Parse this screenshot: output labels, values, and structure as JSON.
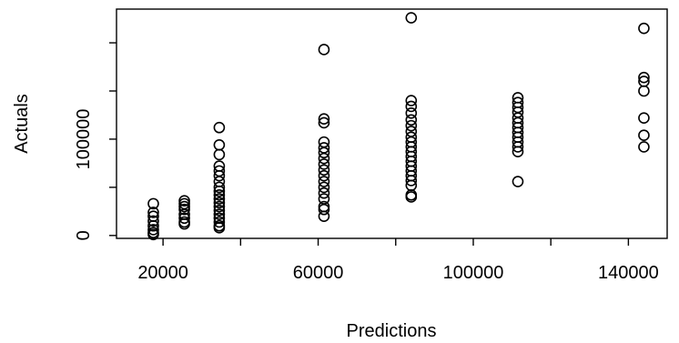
{
  "chart_data": {
    "type": "scatter",
    "xlabel": "Predictions",
    "ylabel": "Actuals",
    "xlim": [
      8000,
      150000
    ],
    "ylim": [
      -3000,
      235000
    ],
    "x_ticks": [
      20000,
      40000,
      60000,
      80000,
      100000,
      120000,
      140000
    ],
    "x_tick_labels": [
      "20000",
      "",
      "60000",
      "",
      "100000",
      "",
      "140000"
    ],
    "y_ticks": [
      0,
      50000,
      100000,
      150000,
      200000
    ],
    "y_tick_labels": [
      "0",
      "",
      "100000",
      "",
      ""
    ],
    "grid": false,
    "points": [
      {
        "x": 17500,
        "y": 33000
      },
      {
        "x": 17500,
        "y": 24000
      },
      {
        "x": 17500,
        "y": 20000
      },
      {
        "x": 17500,
        "y": 15000
      },
      {
        "x": 17500,
        "y": 10000
      },
      {
        "x": 17500,
        "y": 6000
      },
      {
        "x": 17500,
        "y": 3000
      },
      {
        "x": 17500,
        "y": 1000
      },
      {
        "x": 25500,
        "y": 36000
      },
      {
        "x": 25500,
        "y": 33000
      },
      {
        "x": 25500,
        "y": 30000
      },
      {
        "x": 25500,
        "y": 27000
      },
      {
        "x": 25500,
        "y": 22000
      },
      {
        "x": 25500,
        "y": 18000
      },
      {
        "x": 25500,
        "y": 14000
      },
      {
        "x": 25500,
        "y": 12000
      },
      {
        "x": 34500,
        "y": 112000
      },
      {
        "x": 34500,
        "y": 94000
      },
      {
        "x": 34500,
        "y": 84000
      },
      {
        "x": 34500,
        "y": 72000
      },
      {
        "x": 34500,
        "y": 67000
      },
      {
        "x": 34500,
        "y": 62000
      },
      {
        "x": 34500,
        "y": 56000
      },
      {
        "x": 34500,
        "y": 50000
      },
      {
        "x": 34500,
        "y": 46000
      },
      {
        "x": 34500,
        "y": 42000
      },
      {
        "x": 34500,
        "y": 38000
      },
      {
        "x": 34500,
        "y": 34000
      },
      {
        "x": 34500,
        "y": 30000
      },
      {
        "x": 34500,
        "y": 26000
      },
      {
        "x": 34500,
        "y": 22000
      },
      {
        "x": 34500,
        "y": 18000
      },
      {
        "x": 34500,
        "y": 14000
      },
      {
        "x": 34500,
        "y": 10000
      },
      {
        "x": 34500,
        "y": 8000
      },
      {
        "x": 61500,
        "y": 193000
      },
      {
        "x": 61500,
        "y": 121000
      },
      {
        "x": 61500,
        "y": 117000
      },
      {
        "x": 61500,
        "y": 97000
      },
      {
        "x": 61500,
        "y": 91000
      },
      {
        "x": 61500,
        "y": 86000
      },
      {
        "x": 61500,
        "y": 80000
      },
      {
        "x": 61500,
        "y": 74000
      },
      {
        "x": 61500,
        "y": 68000
      },
      {
        "x": 61500,
        "y": 62000
      },
      {
        "x": 61500,
        "y": 56000
      },
      {
        "x": 61500,
        "y": 50000
      },
      {
        "x": 61500,
        "y": 44000
      },
      {
        "x": 61500,
        "y": 38000
      },
      {
        "x": 61500,
        "y": 30000
      },
      {
        "x": 61500,
        "y": 27000
      },
      {
        "x": 61500,
        "y": 20000
      },
      {
        "x": 84000,
        "y": 226000
      },
      {
        "x": 84000,
        "y": 140000
      },
      {
        "x": 84000,
        "y": 134000
      },
      {
        "x": 84000,
        "y": 127000
      },
      {
        "x": 84000,
        "y": 120000
      },
      {
        "x": 84000,
        "y": 114000
      },
      {
        "x": 84000,
        "y": 108000
      },
      {
        "x": 84000,
        "y": 102000
      },
      {
        "x": 84000,
        "y": 97000
      },
      {
        "x": 84000,
        "y": 92000
      },
      {
        "x": 84000,
        "y": 87000
      },
      {
        "x": 84000,
        "y": 82000
      },
      {
        "x": 84000,
        "y": 77000
      },
      {
        "x": 84000,
        "y": 72000
      },
      {
        "x": 84000,
        "y": 67000
      },
      {
        "x": 84000,
        "y": 62000
      },
      {
        "x": 84000,
        "y": 57000
      },
      {
        "x": 84000,
        "y": 52000
      },
      {
        "x": 84000,
        "y": 42000
      },
      {
        "x": 84000,
        "y": 40000
      },
      {
        "x": 111500,
        "y": 143000
      },
      {
        "x": 111500,
        "y": 138000
      },
      {
        "x": 111500,
        "y": 133000
      },
      {
        "x": 111500,
        "y": 128000
      },
      {
        "x": 111500,
        "y": 122000
      },
      {
        "x": 111500,
        "y": 117000
      },
      {
        "x": 111500,
        "y": 112000
      },
      {
        "x": 111500,
        "y": 107000
      },
      {
        "x": 111500,
        "y": 102000
      },
      {
        "x": 111500,
        "y": 97000
      },
      {
        "x": 111500,
        "y": 92000
      },
      {
        "x": 111500,
        "y": 87000
      },
      {
        "x": 111500,
        "y": 56000
      },
      {
        "x": 144000,
        "y": 215000
      },
      {
        "x": 144000,
        "y": 164000
      },
      {
        "x": 144000,
        "y": 160000
      },
      {
        "x": 144000,
        "y": 150000
      },
      {
        "x": 144000,
        "y": 122000
      },
      {
        "x": 144000,
        "y": 104000
      },
      {
        "x": 144000,
        "y": 92000
      }
    ]
  }
}
